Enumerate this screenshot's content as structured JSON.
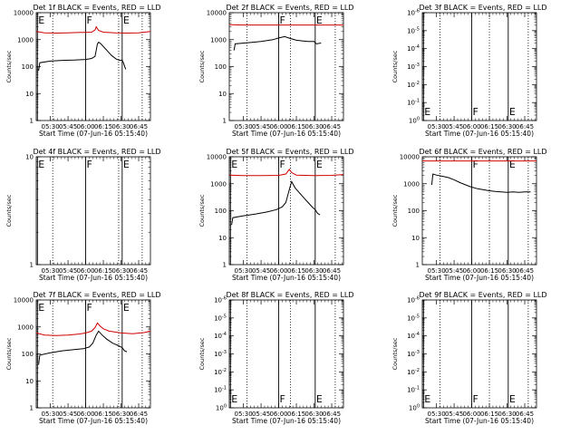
{
  "shared": {
    "xlabel": "Start Time (07-Jun-16 05:15:40)",
    "ylabel": "Counts/sec",
    "xticks": [
      "05:30",
      "05:45",
      "06:00",
      "06:15",
      "06:30",
      "06:45"
    ],
    "colors": {
      "events": "#000000",
      "lld": "#d00000",
      "axes": "#000000"
    }
  },
  "chart_data": [
    {
      "type": "line",
      "title": "Det 1f BLACK = Events, RED = LLD",
      "yscale": "log",
      "ylim": [
        1,
        10000
      ],
      "yticks": [
        "1",
        "10",
        "100",
        "1000",
        "10000"
      ],
      "xlim": [
        "05:18",
        "06:55"
      ],
      "markers": [
        {
          "label": "E",
          "t": "05:19"
        },
        {
          "label": "F",
          "t": "06:00"
        },
        {
          "label": "E",
          "t": "06:31"
        }
      ],
      "dotted_lines": [
        "05:32",
        "06:28",
        "06:48"
      ],
      "series": [
        {
          "name": "Events",
          "color": "#000000",
          "points": [
            [
              "05:20",
              70
            ],
            [
              "05:21",
              140
            ],
            [
              "05:30",
              160
            ],
            [
              "05:40",
              170
            ],
            [
              "05:50",
              175
            ],
            [
              "06:00",
              185
            ],
            [
              "06:05",
              200
            ],
            [
              "06:08",
              240
            ],
            [
              "06:10",
              700
            ],
            [
              "06:11",
              800
            ],
            [
              "06:13",
              700
            ],
            [
              "06:18",
              400
            ],
            [
              "06:22",
              260
            ],
            [
              "06:26",
              190
            ],
            [
              "06:29",
              170
            ],
            [
              "06:31",
              175
            ],
            [
              "06:32",
              140
            ],
            [
              "06:34",
              80
            ]
          ]
        },
        {
          "name": "LLD",
          "color": "#d00000",
          "points": [
            [
              "05:18",
              2000
            ],
            [
              "05:25",
              1800
            ],
            [
              "05:35",
              1750
            ],
            [
              "05:45",
              1800
            ],
            [
              "05:55",
              1850
            ],
            [
              "06:00",
              1850
            ],
            [
              "06:05",
              1900
            ],
            [
              "06:08",
              2300
            ],
            [
              "06:09",
              3000
            ],
            [
              "06:11",
              2200
            ],
            [
              "06:15",
              1900
            ],
            [
              "06:25",
              1800
            ],
            [
              "06:35",
              1750
            ],
            [
              "06:45",
              1800
            ],
            [
              "06:55",
              2000
            ]
          ]
        }
      ]
    },
    {
      "type": "line",
      "title": "Det 2f BLACK = Events, RED = LLD",
      "yscale": "log",
      "ylim": [
        1,
        10000
      ],
      "yticks": [
        "1",
        "10",
        "100",
        "1000",
        "10000"
      ],
      "xlim": [
        "05:18",
        "06:55"
      ],
      "markers": [
        {
          "label": "F",
          "t": "06:00"
        },
        {
          "label": "E",
          "t": "06:31"
        }
      ],
      "dotted_lines": [
        "05:33",
        "06:10",
        "06:48"
      ],
      "series": [
        {
          "name": "Events",
          "color": "#000000",
          "points": [
            [
              "05:22",
              400
            ],
            [
              "05:23",
              700
            ],
            [
              "05:35",
              780
            ],
            [
              "05:45",
              850
            ],
            [
              "05:55",
              1000
            ],
            [
              "06:00",
              1150
            ],
            [
              "06:05",
              1300
            ],
            [
              "06:10",
              1100
            ],
            [
              "06:15",
              950
            ],
            [
              "06:20",
              900
            ],
            [
              "06:25",
              850
            ],
            [
              "06:30",
              850
            ],
            [
              "06:32",
              700
            ],
            [
              "06:36",
              750
            ]
          ]
        },
        {
          "name": "LLD",
          "color": "#d00000",
          "points": [
            [
              "05:18",
              3600
            ],
            [
              "05:30",
              3500
            ],
            [
              "05:45",
              3500
            ],
            [
              "06:00",
              3500
            ],
            [
              "06:15",
              3500
            ],
            [
              "06:30",
              3500
            ],
            [
              "06:45",
              3500
            ],
            [
              "06:55",
              3500
            ]
          ]
        }
      ]
    },
    {
      "type": "line",
      "title": "Det 3f BLACK = Events, RED = LLD",
      "yscale": "log",
      "ylim": [
        1,
        1e-06
      ],
      "yticks": [
        "10^0",
        "10^-1",
        "10^-2",
        "10^-3",
        "10^-4",
        "10^-5",
        "10^-6"
      ],
      "xlim": [
        "05:18",
        "06:55"
      ],
      "markers": [
        {
          "label": "E",
          "t": "05:19"
        },
        {
          "label": "F",
          "t": "06:00"
        },
        {
          "label": "E",
          "t": "06:31"
        }
      ],
      "dotted_lines": [
        "05:33",
        "06:15",
        "06:48"
      ],
      "series": []
    },
    {
      "type": "line",
      "title": "Det 4f BLACK = Events, RED = LLD",
      "yscale": "log",
      "ylim": [
        1,
        10
      ],
      "yticks": [
        "1",
        "10"
      ],
      "xlim": [
        "05:18",
        "06:55"
      ],
      "markers": [
        {
          "label": "E",
          "t": "05:19"
        },
        {
          "label": "F",
          "t": "06:00"
        },
        {
          "label": "E",
          "t": "06:31"
        }
      ],
      "dotted_lines": [
        "05:32",
        "06:28",
        "06:48"
      ],
      "series": []
    },
    {
      "type": "line",
      "title": "Det 5f BLACK = Events, RED = LLD",
      "yscale": "log",
      "ylim": [
        1,
        10000
      ],
      "yticks": [
        "1",
        "10",
        "100",
        "1000",
        "10000"
      ],
      "xlim": [
        "05:18",
        "06:55"
      ],
      "markers": [
        {
          "label": "E",
          "t": "05:19"
        },
        {
          "label": "F",
          "t": "06:00"
        },
        {
          "label": "E",
          "t": "06:31"
        }
      ],
      "dotted_lines": [
        "05:33",
        "06:10",
        "06:48"
      ],
      "series": [
        {
          "name": "Events",
          "color": "#000000",
          "points": [
            [
              "05:20",
              30
            ],
            [
              "05:21",
              55
            ],
            [
              "05:30",
              65
            ],
            [
              "05:40",
              75
            ],
            [
              "05:50",
              90
            ],
            [
              "05:58",
              110
            ],
            [
              "06:03",
              140
            ],
            [
              "06:06",
              200
            ],
            [
              "06:09",
              600
            ],
            [
              "06:11",
              1200
            ],
            [
              "06:14",
              700
            ],
            [
              "06:20",
              350
            ],
            [
              "06:25",
              200
            ],
            [
              "06:29",
              130
            ],
            [
              "06:31",
              110
            ],
            [
              "06:33",
              80
            ],
            [
              "06:35",
              70
            ]
          ]
        },
        {
          "name": "LLD",
          "color": "#d00000",
          "points": [
            [
              "05:18",
              2100
            ],
            [
              "05:30",
              2000
            ],
            [
              "05:45",
              2000
            ],
            [
              "06:00",
              2050
            ],
            [
              "06:06",
              2300
            ],
            [
              "06:09",
              3400
            ],
            [
              "06:11",
              2600
            ],
            [
              "06:15",
              2100
            ],
            [
              "06:30",
              2000
            ],
            [
              "06:45",
              2050
            ],
            [
              "06:55",
              2200
            ]
          ]
        }
      ]
    },
    {
      "type": "line",
      "title": "Det 6f BLACK = Events, RED = LLD",
      "yscale": "log",
      "ylim": [
        1,
        10000
      ],
      "yticks": [
        "1",
        "10",
        "100",
        "1000",
        "10000"
      ],
      "xlim": [
        "05:18",
        "06:55"
      ],
      "markers": [
        {
          "label": "F",
          "t": "06:00"
        },
        {
          "label": "E",
          "t": "06:31"
        }
      ],
      "dotted_lines": [
        "05:33",
        "06:15",
        "06:48"
      ],
      "series": [
        {
          "name": "Events",
          "color": "#000000",
          "points": [
            [
              "05:26",
              900
            ],
            [
              "05:27",
              2300
            ],
            [
              "05:30",
              2100
            ],
            [
              "05:35",
              1900
            ],
            [
              "05:40",
              1700
            ],
            [
              "05:45",
              1400
            ],
            [
              "05:50",
              1100
            ],
            [
              "05:55",
              900
            ],
            [
              "05:58",
              800
            ],
            [
              "06:00",
              750
            ],
            [
              "06:05",
              650
            ],
            [
              "06:10",
              600
            ],
            [
              "06:15",
              550
            ],
            [
              "06:20",
              520
            ],
            [
              "06:25",
              500
            ],
            [
              "06:30",
              480
            ],
            [
              "06:35",
              500
            ],
            [
              "06:40",
              480
            ],
            [
              "06:45",
              500
            ],
            [
              "06:50",
              500
            ]
          ]
        },
        {
          "name": "LLD",
          "color": "#d00000",
          "points": [
            [
              "05:18",
              7000
            ],
            [
              "05:30",
              7000
            ],
            [
              "05:45",
              7000
            ],
            [
              "06:00",
              7000
            ],
            [
              "06:15",
              7000
            ],
            [
              "06:30",
              7000
            ],
            [
              "06:45",
              7000
            ],
            [
              "06:55",
              7000
            ]
          ]
        }
      ]
    },
    {
      "type": "line",
      "title": "Det 7f BLACK = Events, RED = LLD",
      "yscale": "log",
      "ylim": [
        1,
        10000
      ],
      "yticks": [
        "1",
        "10",
        "100",
        "1000",
        "10000"
      ],
      "xlim": [
        "05:18",
        "06:55"
      ],
      "markers": [
        {
          "label": "E",
          "t": "05:19"
        },
        {
          "label": "F",
          "t": "06:00"
        },
        {
          "label": "E",
          "t": "06:31"
        }
      ],
      "dotted_lines": [
        "05:32",
        "06:28",
        "06:48"
      ],
      "series": [
        {
          "name": "Events",
          "color": "#000000",
          "points": [
            [
              "05:20",
              40
            ],
            [
              "05:21",
              90
            ],
            [
              "05:30",
              110
            ],
            [
              "05:40",
              130
            ],
            [
              "05:50",
              145
            ],
            [
              "05:58",
              155
            ],
            [
              "06:03",
              180
            ],
            [
              "06:06",
              250
            ],
            [
              "06:09",
              500
            ],
            [
              "06:11",
              700
            ],
            [
              "06:14",
              500
            ],
            [
              "06:18",
              350
            ],
            [
              "06:23",
              250
            ],
            [
              "06:28",
              200
            ],
            [
              "06:31",
              170
            ],
            [
              "06:33",
              130
            ],
            [
              "06:35",
              120
            ]
          ]
        },
        {
          "name": "LLD",
          "color": "#d00000",
          "points": [
            [
              "05:18",
              600
            ],
            [
              "05:25",
              500
            ],
            [
              "05:35",
              480
            ],
            [
              "05:45",
              500
            ],
            [
              "05:55",
              550
            ],
            [
              "06:00",
              600
            ],
            [
              "06:05",
              700
            ],
            [
              "06:08",
              950
            ],
            [
              "06:10",
              1400
            ],
            [
              "06:12",
              1100
            ],
            [
              "06:15",
              850
            ],
            [
              "06:20",
              700
            ],
            [
              "06:30",
              600
            ],
            [
              "06:40",
              560
            ],
            [
              "06:50",
              620
            ],
            [
              "06:55",
              700
            ]
          ]
        }
      ]
    },
    {
      "type": "line",
      "title": "Det 8f BLACK = Events, RED = LLD",
      "yscale": "log",
      "ylim": [
        1,
        1e-06
      ],
      "yticks": [
        "10^0",
        "10^-1",
        "10^-2",
        "10^-3",
        "10^-4",
        "10^-5",
        "10^-6"
      ],
      "xlim": [
        "05:18",
        "06:55"
      ],
      "markers": [
        {
          "label": "E",
          "t": "05:19"
        },
        {
          "label": "F",
          "t": "06:00"
        },
        {
          "label": "E",
          "t": "06:31"
        }
      ],
      "dotted_lines": [
        "05:33",
        "06:10",
        "06:48"
      ],
      "series": []
    },
    {
      "type": "line",
      "title": "Det 9f BLACK = Events, RED = LLD",
      "yscale": "log",
      "ylim": [
        1,
        1e-06
      ],
      "yticks": [
        "10^0",
        "10^-1",
        "10^-2",
        "10^-3",
        "10^-4",
        "10^-5",
        "10^-6"
      ],
      "xlim": [
        "05:18",
        "06:55"
      ],
      "markers": [
        {
          "label": "E",
          "t": "05:19"
        },
        {
          "label": "F",
          "t": "06:00"
        },
        {
          "label": "E",
          "t": "06:31"
        }
      ],
      "dotted_lines": [
        "05:33",
        "06:15",
        "06:48"
      ],
      "series": []
    }
  ]
}
